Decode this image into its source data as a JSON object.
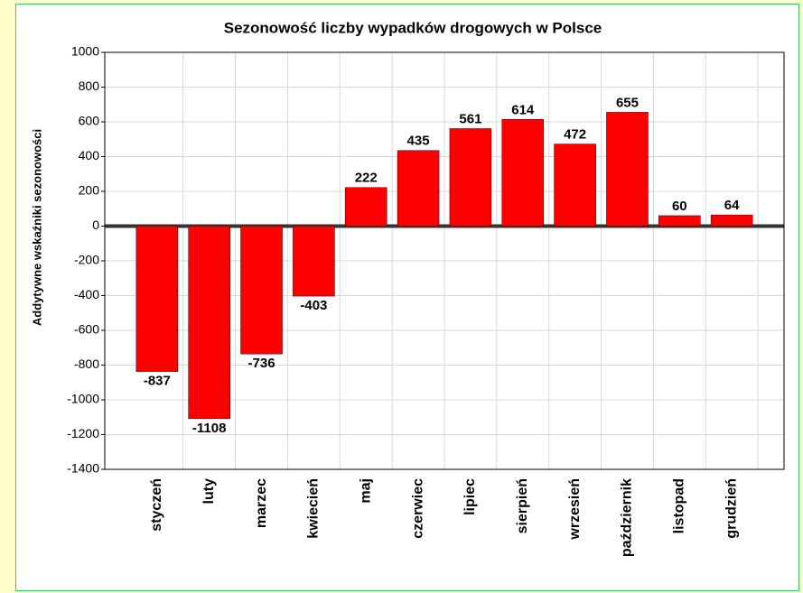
{
  "chart_data": {
    "type": "bar",
    "title": "Sezonowość liczby wypadków drogowych w Polsce",
    "y_label": "Addytywne wskaźniki sezonowości",
    "categories": [
      "styczeń",
      "luty",
      "marzec",
      "kwiecień",
      "maj",
      "czerwiec",
      "lipiec",
      "sierpień",
      "wrzesień",
      "październik",
      "listopad",
      "grudzień"
    ],
    "values": [
      -837,
      -1108,
      -736,
      -403,
      222,
      435,
      561,
      614,
      472,
      655,
      60,
      64
    ],
    "color": "#ff0000",
    "ylim": [
      -1400,
      1000
    ],
    "yticks": [
      -1400,
      -1200,
      -1000,
      -800,
      -600,
      -400,
      -200,
      0,
      200,
      400,
      600,
      800,
      1000
    ],
    "grid": true
  }
}
